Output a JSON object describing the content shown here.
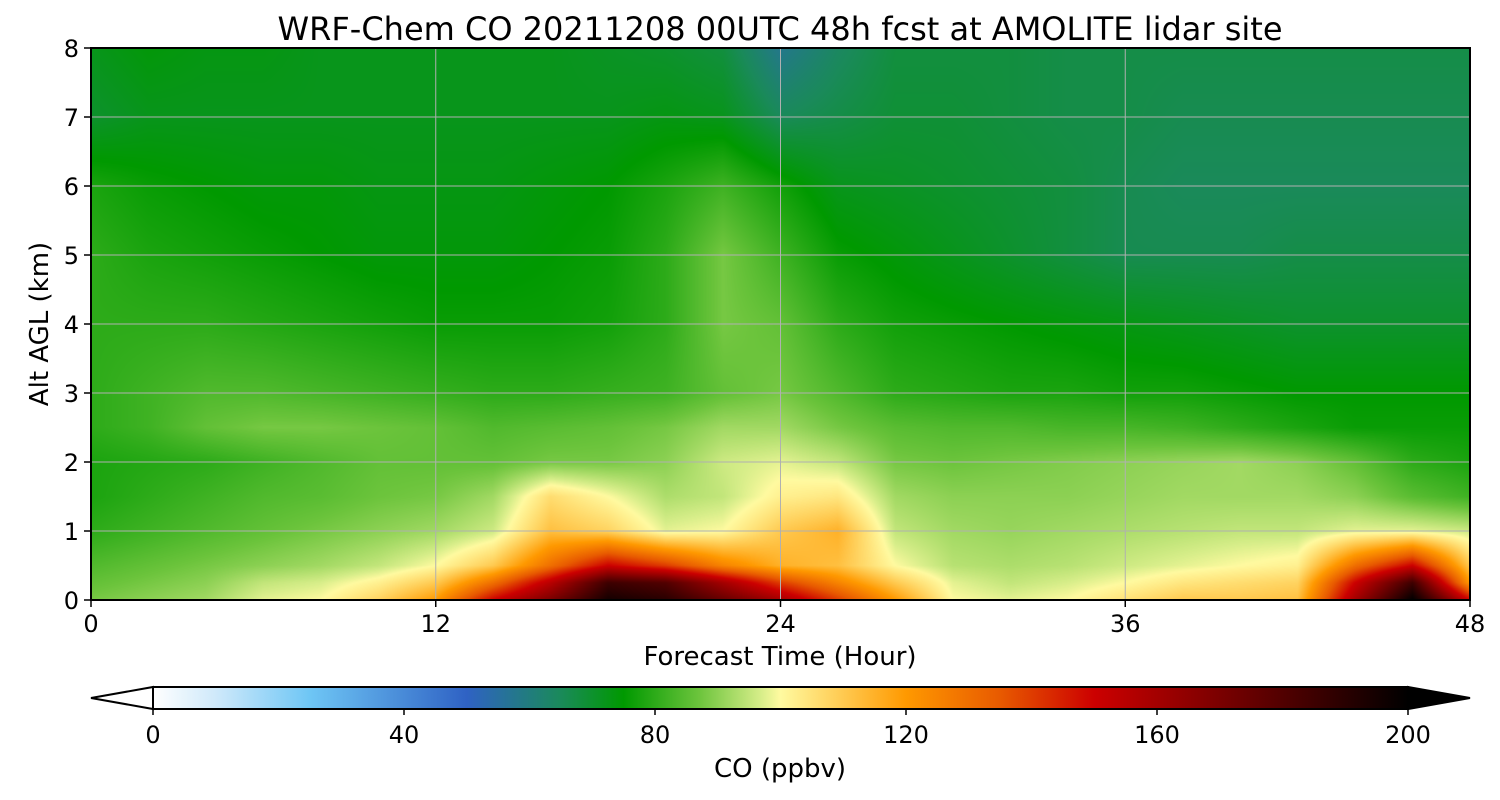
{
  "chart_data": {
    "type": "heatmap",
    "title": "WRF-Chem CO  20211208 00UTC 48h fcst at AMOLITE lidar site",
    "xlabel": "Forecast Time (Hour)",
    "ylabel": "Alt AGL (km)",
    "xlim": [
      0,
      48
    ],
    "ylim": [
      0,
      8
    ],
    "xticks": [
      "0",
      "12",
      "24",
      "36",
      "48"
    ],
    "yticks": [
      "0",
      "1",
      "2",
      "3",
      "4",
      "5",
      "6",
      "7",
      "8"
    ],
    "grid": true,
    "colorbar": {
      "label": "CO  (ppbv)",
      "range": [
        0,
        200
      ],
      "ticks": [
        "0",
        "40",
        "80",
        "120",
        "160",
        "200"
      ],
      "extend": "both",
      "stops": [
        {
          "value": 0,
          "color": "#ffffff"
        },
        {
          "value": 10,
          "color": "#cfe9fa"
        },
        {
          "value": 25,
          "color": "#6ec6f5"
        },
        {
          "value": 50,
          "color": "#2f62c4"
        },
        {
          "value": 65,
          "color": "#1a8a5a"
        },
        {
          "value": 75,
          "color": "#009900"
        },
        {
          "value": 87,
          "color": "#6cc43c"
        },
        {
          "value": 97,
          "color": "#d8ee8a"
        },
        {
          "value": 100,
          "color": "#fffaa0"
        },
        {
          "value": 120,
          "color": "#ff9900"
        },
        {
          "value": 135,
          "color": "#e85a00"
        },
        {
          "value": 150,
          "color": "#cc0000"
        },
        {
          "value": 175,
          "color": "#660000"
        },
        {
          "value": 200,
          "color": "#000000"
        }
      ]
    },
    "hours": [
      0,
      2,
      4,
      6,
      8,
      10,
      12,
      14,
      16,
      18,
      20,
      22,
      24,
      26,
      28,
      30,
      32,
      34,
      36,
      38,
      40,
      42,
      44,
      46,
      48
    ],
    "altitudes_km": [
      0,
      0.25,
      0.5,
      1.0,
      1.5,
      2.0,
      2.5,
      3.0,
      4.0,
      5.0,
      6.0,
      7.0,
      8.0
    ],
    "co_ppbv": [
      [
        88,
        90,
        92,
        98,
        100,
        108,
        120,
        150,
        170,
        195,
        190,
        175,
        160,
        140,
        120,
        100,
        98,
        100,
        105,
        110,
        110,
        112,
        160,
        200,
        150
      ],
      [
        86,
        88,
        90,
        95,
        97,
        102,
        110,
        130,
        155,
        185,
        180,
        160,
        140,
        125,
        110,
        98,
        95,
        97,
        100,
        104,
        106,
        108,
        150,
        185,
        120
      ],
      [
        84,
        86,
        88,
        90,
        92,
        95,
        100,
        110,
        130,
        150,
        140,
        125,
        115,
        112,
        100,
        94,
        93,
        94,
        96,
        98,
        100,
        102,
        130,
        150,
        110
      ],
      [
        80,
        82,
        84,
        86,
        88,
        90,
        92,
        96,
        112,
        108,
        98,
        100,
        110,
        115,
        95,
        92,
        91,
        92,
        93,
        94,
        95,
        95,
        98,
        98,
        96
      ],
      [
        78,
        80,
        82,
        84,
        85,
        87,
        88,
        92,
        106,
        100,
        93,
        95,
        102,
        104,
        92,
        90,
        90,
        90,
        91,
        92,
        92,
        92,
        90,
        85,
        82
      ],
      [
        78,
        79,
        80,
        82,
        84,
        86,
        86,
        86,
        88,
        88,
        90,
        96,
        98,
        95,
        88,
        87,
        88,
        89,
        90,
        91,
        92,
        90,
        86,
        80,
        78
      ],
      [
        80,
        82,
        86,
        88,
        88,
        87,
        86,
        84,
        85,
        86,
        88,
        92,
        92,
        88,
        85,
        84,
        84,
        83,
        83,
        82,
        80,
        78,
        76,
        76,
        76
      ],
      [
        80,
        82,
        84,
        84,
        83,
        82,
        81,
        80,
        80,
        81,
        82,
        86,
        88,
        84,
        80,
        79,
        78,
        78,
        77,
        77,
        76,
        75,
        75,
        75,
        75
      ],
      [
        80,
        80,
        80,
        79,
        78,
        77,
        76,
        76,
        76,
        77,
        80,
        88,
        86,
        80,
        77,
        76,
        75,
        74,
        73,
        72,
        71,
        70,
        70,
        70,
        70
      ],
      [
        80,
        78,
        77,
        76,
        75,
        74,
        74,
        74,
        75,
        76,
        80,
        88,
        82,
        76,
        74,
        72,
        70,
        68,
        66,
        66,
        66,
        67,
        67,
        67,
        67
      ],
      [
        78,
        76,
        75,
        74,
        74,
        73,
        73,
        73,
        74,
        75,
        78,
        82,
        77,
        72,
        71,
        70,
        69,
        68,
        66,
        65,
        65,
        65,
        65,
        65,
        65
      ],
      [
        70,
        72,
        72,
        72,
        72,
        72,
        72,
        72,
        72,
        72,
        73,
        72,
        65,
        67,
        69,
        69,
        68,
        67,
        67,
        66,
        66,
        66,
        66,
        66,
        66
      ],
      [
        72,
        74,
        73,
        73,
        72,
        72,
        72,
        72,
        72,
        71,
        70,
        68,
        58,
        64,
        68,
        68,
        68,
        67,
        67,
        67,
        67,
        67,
        67,
        67,
        67
      ]
    ]
  }
}
